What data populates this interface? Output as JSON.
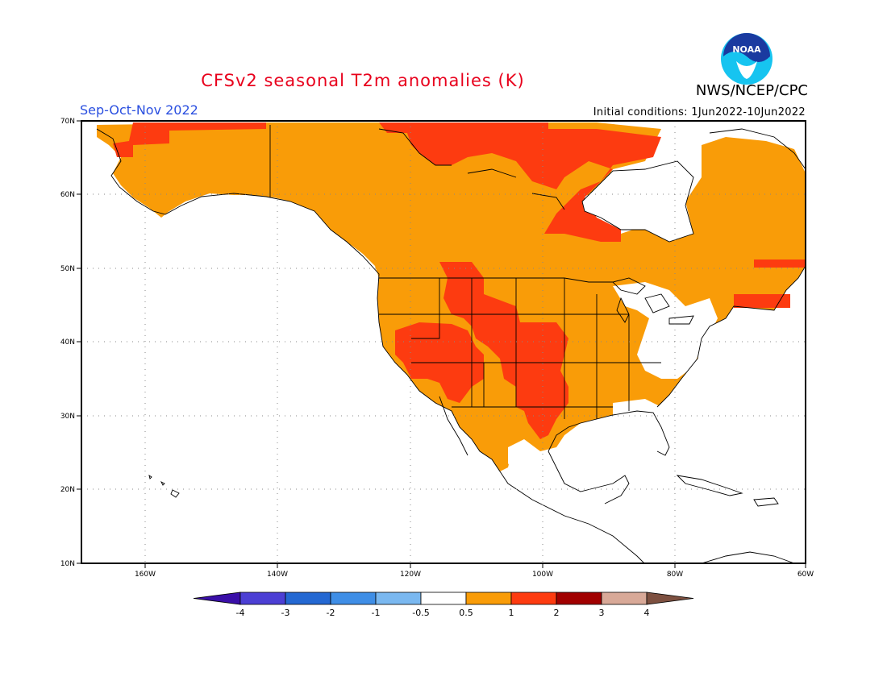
{
  "title": "CFSv2 seasonal T2m anomalies (K)",
  "agency": "NWS/NCEP/CPC",
  "season": "Sep-Oct-Nov 2022",
  "initial_conditions": "Initial conditions: 1Jun2022-10Jun2022",
  "logo_text": "NOAA",
  "lat_labels": [
    "70N",
    "60N",
    "50N",
    "40N",
    "30N",
    "20N",
    "10N"
  ],
  "lon_labels": [
    "160W",
    "140W",
    "120W",
    "100W",
    "80W",
    "60W"
  ],
  "legend": {
    "labels": [
      "-4",
      "-3",
      "-2",
      "-1",
      "-0.5",
      "0.5",
      "1",
      "2",
      "3",
      "4"
    ],
    "colors": [
      "#3a0fa8",
      "#4c3fd4",
      "#2468d2",
      "#3f8ee6",
      "#7ab8f0",
      "#ffffff",
      "#f99c08",
      "#fd3b10",
      "#a10000",
      "#d8a998",
      "#7d5040"
    ]
  },
  "map_colors": {
    "ocean": "#ffffff",
    "anom_05_1": "#f99c08",
    "anom_1_2": "#fd3b10",
    "anom_lt_05": "#ffffff"
  }
}
